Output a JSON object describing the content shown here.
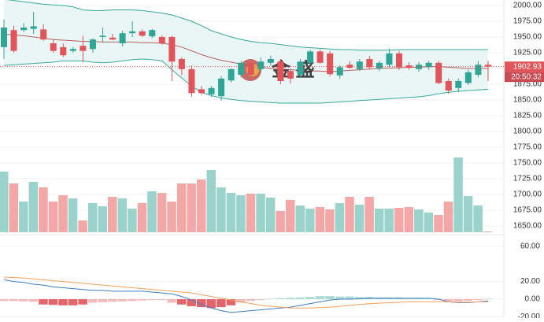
{
  "chart_data": [
    {
      "type": "candlestick",
      "open": [
        1934,
        1961,
        1961,
        1963,
        1962,
        1940,
        1934,
        1928,
        1936,
        1931,
        1950,
        1949,
        1940,
        1956,
        1959,
        1951,
        1950,
        1950,
        1915,
        1899,
        1867,
        1859,
        1856,
        1881,
        1890,
        1909,
        1899,
        1909,
        1911,
        1896,
        1890,
        1909,
        1927,
        1924,
        1889,
        1906,
        1899,
        1915,
        1900,
        1906,
        1924,
        1905,
        1899,
        1902,
        1909,
        1880,
        1869,
        1877,
        1890,
        1906
      ],
      "high": [
        1978,
        1968,
        1972,
        1990,
        1970,
        1946,
        1940,
        1934,
        1952,
        1948,
        1965,
        1955,
        1960,
        1975,
        1962,
        1963,
        1953,
        1952,
        1918,
        1905,
        1872,
        1872,
        1888,
        1900,
        1912,
        1915,
        1918,
        1920,
        1915,
        1900,
        1915,
        1930,
        1930,
        1928,
        1905,
        1912,
        1915,
        1920,
        1912,
        1932,
        1928,
        1910,
        1910,
        1912,
        1912,
        1884,
        1884,
        1898,
        1912,
        1912
      ],
      "low": [
        1915,
        1925,
        1958,
        1955,
        1944,
        1925,
        1918,
        1925,
        1910,
        1925,
        1942,
        1945,
        1935,
        1950,
        1950,
        1948,
        1938,
        1880,
        1890,
        1855,
        1858,
        1855,
        1849,
        1878,
        1886,
        1882,
        1894,
        1905,
        1875,
        1876,
        1885,
        1906,
        1908,
        1888,
        1884,
        1900,
        1896,
        1898,
        1896,
        1902,
        1898,
        1898,
        1895,
        1898,
        1875,
        1860,
        1862,
        1874,
        1886,
        1880
      ],
      "close": [
        1965,
        1928,
        1965,
        1967,
        1946,
        1928,
        1921,
        1931,
        1928,
        1946,
        1952,
        1946,
        1956,
        1959,
        1952,
        1961,
        1940,
        1911,
        1899,
        1861,
        1861,
        1869,
        1884,
        1899,
        1909,
        1890,
        1911,
        1915,
        1880,
        1884,
        1911,
        1927,
        1909,
        1891,
        1902,
        1901,
        1911,
        1902,
        1909,
        1924,
        1902,
        1901,
        1906,
        1909,
        1877,
        1865,
        1880,
        1894,
        1906,
        1903
      ],
      "volume": [
        77,
        62,
        39,
        64,
        57,
        39,
        47,
        43,
        15,
        37,
        33,
        45,
        43,
        30,
        37,
        52,
        50,
        39,
        62,
        62,
        67,
        79,
        57,
        50,
        47,
        49,
        49,
        44,
        27,
        41,
        34,
        30,
        32,
        29,
        37,
        45,
        35,
        45,
        30,
        30,
        31,
        32,
        29,
        25,
        22,
        39,
        95,
        46,
        34,
        1
      ],
      "upper": [
        2010,
        2008,
        2006,
        2004,
        2002,
        2001,
        2000,
        1998,
        1993,
        1992,
        1992,
        1993,
        1993,
        1993,
        1992,
        1990,
        1988,
        1985,
        1980,
        1975,
        1968,
        1960,
        1955,
        1950,
        1946,
        1943,
        1941,
        1940,
        1938,
        1936,
        1934,
        1933,
        1932,
        1931,
        1930,
        1930,
        1929,
        1929,
        1929,
        1929,
        1930,
        1930,
        1930,
        1930,
        1930,
        1930,
        1930,
        1930,
        1930,
        1930
      ],
      "middle": [
        1955,
        1953,
        1952,
        1950,
        1948,
        1946,
        1945,
        1944,
        1943,
        1943,
        1942,
        1942,
        1942,
        1942,
        1941,
        1941,
        1940,
        1938,
        1934,
        1928,
        1922,
        1917,
        1913,
        1910,
        1907,
        1904,
        1902,
        1900,
        1899,
        1898,
        1897,
        1896,
        1896,
        1895,
        1896,
        1897,
        1898,
        1899,
        1900,
        1901,
        1901,
        1902,
        1902,
        1903,
        1903,
        1902,
        1901,
        1900,
        1900,
        1900
      ],
      "lower": [
        1905,
        1906,
        1907,
        1908,
        1909,
        1910,
        1912,
        1912,
        1912,
        1910,
        1909,
        1910,
        1912,
        1914,
        1915,
        1914,
        1912,
        1898,
        1885,
        1872,
        1862,
        1857,
        1853,
        1851,
        1849,
        1848,
        1847,
        1846,
        1845,
        1845,
        1845,
        1845,
        1845,
        1846,
        1847,
        1848,
        1849,
        1850,
        1851,
        1852,
        1853,
        1854,
        1855,
        1857,
        1860,
        1862,
        1864,
        1865,
        1866,
        1867
      ],
      "up_color": "#2fa596",
      "down_color": "#e0545a",
      "volume_up_color": "#9ad3cc",
      "volume_down_color": "#f4a7a7",
      "band_color": "#3aa89c",
      "middle_color": "#b86060",
      "band_fill": "#eaf6f5",
      "ylim": [
        1640,
        2008.75
      ],
      "yticks": [
        {
          "value": 2000,
          "label": "2000.00"
        },
        {
          "value": 1975,
          "label": "1975.00"
        },
        {
          "value": 1950,
          "label": "1950.00"
        },
        {
          "value": 1925,
          "label": "1925.00"
        },
        {
          "value": 1900,
          "label": "1900.00"
        },
        {
          "value": 1875,
          "label": "1875.00"
        },
        {
          "value": 1850,
          "label": "1850.00"
        },
        {
          "value": 1825,
          "label": "1825.00"
        },
        {
          "value": 1800,
          "label": "1800.00"
        },
        {
          "value": 1775,
          "label": "1775.00"
        },
        {
          "value": 1750,
          "label": "1750.00"
        },
        {
          "value": 1725,
          "label": "1725.00"
        },
        {
          "value": 1700,
          "label": "1700.00"
        },
        {
          "value": 1675,
          "label": "1675.00"
        },
        {
          "value": 1650,
          "label": "1650.00"
        }
      ],
      "last_price": 1902.93,
      "time_label": "20:50:32",
      "watermark": "金 盛"
    },
    {
      "type": "macd",
      "dif": [
        22,
        20,
        19,
        17,
        16,
        14,
        13,
        12,
        11,
        10,
        10,
        9,
        9,
        9,
        9,
        8,
        7,
        6,
        3,
        -1,
        -6,
        -10,
        -13,
        -15,
        -14,
        -13,
        -12,
        -11,
        -10,
        -9,
        -7,
        -5,
        -3,
        -1,
        0,
        0,
        0.5,
        1,
        1,
        1,
        1,
        1,
        1,
        1,
        0,
        -3,
        -4,
        -4,
        -3,
        -2
      ],
      "dea": [
        25,
        24.5,
        24,
        23,
        22,
        21,
        20,
        19,
        18,
        17,
        16,
        15,
        14,
        13,
        12,
        11,
        10,
        9,
        8,
        7,
        5,
        3,
        1,
        -1,
        -3,
        -5,
        -7,
        -8,
        -9,
        -10,
        -10,
        -10,
        -9.5,
        -9,
        -8,
        -7,
        -6,
        -5,
        -4.5,
        -4,
        -3.5,
        -3,
        -3,
        -3,
        -3,
        -3,
        -3.5,
        -3.5,
        -3,
        -3
      ],
      "hist": [
        -2,
        -2,
        -2.5,
        -3,
        -6,
        -6.5,
        -7,
        -7,
        -6,
        -4,
        -3.5,
        -3,
        -2.5,
        -2,
        -1.5,
        -1,
        -1,
        -4,
        -6,
        -8,
        -9,
        -10,
        -9,
        -7,
        -4,
        -2,
        -1,
        0.5,
        1,
        1.5,
        2,
        2.5,
        3.5,
        3.5,
        3,
        3,
        2.5,
        2.5,
        2,
        2,
        2,
        1.5,
        1.5,
        1,
        -1,
        -2.5,
        -2.5,
        -2,
        -1,
        0.5
      ],
      "dif_color": "#3c7fc6",
      "dea_color": "#f0a15c",
      "hist_up_color": "#2fa596",
      "hist_down_color": "#e0545a",
      "ylim": [
        -21.4,
        71.4
      ],
      "yticks": [
        {
          "value": 60,
          "label": "60.00"
        },
        {
          "value": 20,
          "label": "20.00"
        },
        {
          "value": 0,
          "label": "0.00"
        },
        {
          "value": -20,
          "label": "-20.00"
        }
      ]
    }
  ]
}
